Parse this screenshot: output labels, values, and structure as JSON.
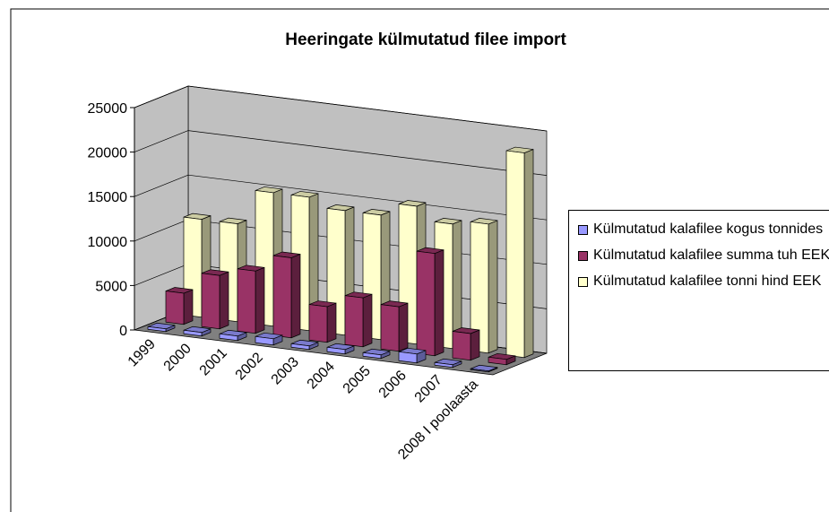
{
  "chart_data": {
    "type": "bar3d",
    "title": "Heeringate külmutatud filee import",
    "categories": [
      "1999",
      "2000",
      "2001",
      "2002",
      "2003",
      "2004",
      "2005",
      "2006",
      "2007",
      "2008 I poolaasta"
    ],
    "series": [
      {
        "name": "Külmutatud kalafilee kogus tonnides",
        "color": "#9999ff",
        "values": [
          300,
          400,
          500,
          700,
          400,
          500,
          400,
          1000,
          300,
          100
        ]
      },
      {
        "name": "Külmutatud kalafilee summa tuh EEK",
        "color": "#993366",
        "values": [
          3500,
          6000,
          7000,
          9000,
          4000,
          5500,
          5000,
          11500,
          3000,
          600
        ]
      },
      {
        "name": "Külmutatud kalafilee tonni hind EEK",
        "color": "#ffffcc",
        "values": [
          11000,
          11000,
          15000,
          15000,
          14000,
          14000,
          15500,
          14000,
          14500,
          23000
        ]
      }
    ],
    "ylim": [
      0,
      25000
    ],
    "yticks": [
      0,
      5000,
      10000,
      15000,
      20000,
      25000
    ],
    "grid": true,
    "legend": "right"
  }
}
